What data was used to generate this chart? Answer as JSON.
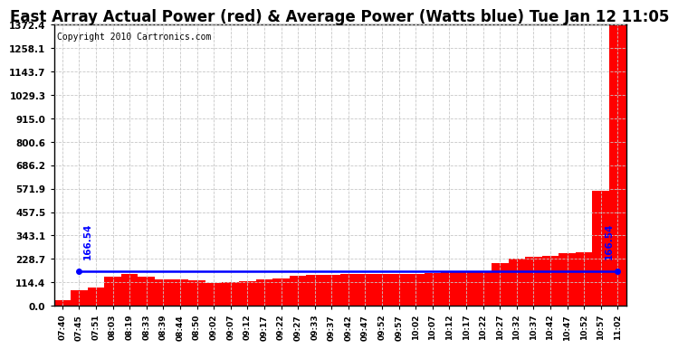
{
  "title": "East Array Actual Power (red) & Average Power (Watts blue) Tue Jan 12 11:05",
  "copyright_text": "Copyright 2010 Cartronics.com",
  "avg_power": 166.54,
  "y_ticks": [
    0.0,
    114.4,
    228.7,
    343.1,
    457.5,
    571.9,
    686.2,
    800.6,
    915.0,
    1029.3,
    1143.7,
    1258.1,
    1372.4
  ],
  "y_max": 1372.4,
  "x_labels": [
    "07:40",
    "07:45",
    "07:51",
    "08:03",
    "08:19",
    "08:33",
    "08:39",
    "08:44",
    "08:50",
    "09:02",
    "09:07",
    "09:12",
    "09:17",
    "09:22",
    "09:27",
    "09:33",
    "09:37",
    "09:42",
    "09:47",
    "09:52",
    "09:57",
    "10:02",
    "10:07",
    "10:12",
    "10:17",
    "10:22",
    "10:27",
    "10:32",
    "10:37",
    "10:42",
    "10:47",
    "10:52",
    "10:57",
    "11:02"
  ],
  "power_values": [
    25,
    75,
    90,
    140,
    155,
    140,
    130,
    130,
    125,
    110,
    115,
    120,
    130,
    135,
    145,
    150,
    150,
    155,
    155,
    155,
    155,
    155,
    160,
    165,
    165,
    170,
    210,
    230,
    240,
    245,
    255,
    260,
    560,
    1372
  ],
  "background_color": "#ffffff",
  "plot_bg_color": "#ffffff",
  "red_color": "#ff0000",
  "blue_color": "#0000ff",
  "grid_color": "#c8c8c8",
  "title_fontsize": 12,
  "copyright_fontsize": 7,
  "avg_label_fontsize": 7.5
}
